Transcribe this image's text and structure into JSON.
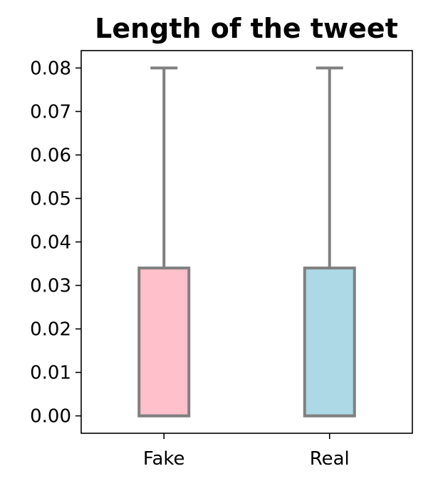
{
  "chart_data": {
    "type": "box",
    "title": "Length of the tweet",
    "xlabel": "",
    "ylabel": "",
    "categories": [
      "Fake",
      "Real"
    ],
    "boxes": [
      {
        "name": "Fake",
        "q1": 0.0,
        "median": 0.0,
        "q3": 0.034,
        "whisker_low": 0.0,
        "whisker_high": 0.08,
        "fill": "#ffc0cb"
      },
      {
        "name": "Real",
        "q1": 0.0,
        "median": 0.0,
        "q3": 0.034,
        "whisker_low": 0.0,
        "whisker_high": 0.08,
        "fill": "#add8e6"
      }
    ],
    "ylim": [
      -0.004,
      0.084
    ],
    "yticks": [
      "0.00",
      "0.01",
      "0.02",
      "0.03",
      "0.04",
      "0.05",
      "0.06",
      "0.07",
      "0.08"
    ],
    "grid": false,
    "line_color": "#808080"
  }
}
